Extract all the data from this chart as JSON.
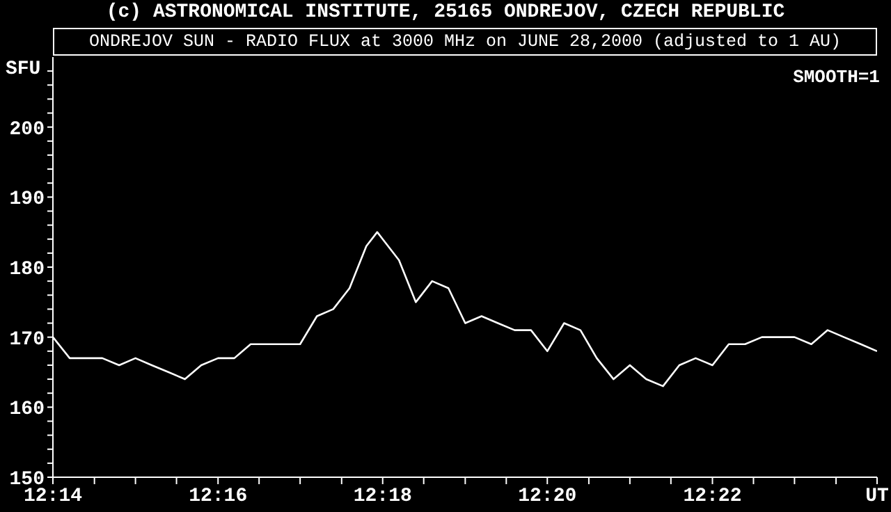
{
  "chart_data": {
    "type": "line",
    "title": "ONDREJOV SUN - RADIO FLUX at 3000 MHz on JUNE 28,2000 (adjusted to 1 AU)",
    "ylabel": "SFU",
    "annotations": [
      "(c) ASTRONOMICAL INSTITUTE, 25165 ONDREJOV, CZECH REPUBLIC",
      "SMOOTH=1"
    ],
    "x": [
      12.2333,
      12.2367,
      12.24,
      12.2433,
      12.2467,
      12.25,
      12.2533,
      12.2567,
      12.26,
      12.2633,
      12.2667,
      12.27,
      12.2733,
      12.2767,
      12.28,
      12.2833,
      12.2867,
      12.29,
      12.2933,
      12.2967,
      12.2989,
      12.3,
      12.3033,
      12.3067,
      12.31,
      12.3133,
      12.3167,
      12.32,
      12.3233,
      12.3267,
      12.33,
      12.3333,
      12.3367,
      12.34,
      12.3433,
      12.3467,
      12.35,
      12.3533,
      12.3567,
      12.36,
      12.3633,
      12.3667,
      12.37,
      12.3733,
      12.3767,
      12.38,
      12.3833,
      12.3867,
      12.39,
      12.3933,
      12.3967,
      12.4
    ],
    "values": [
      170,
      167,
      167,
      167,
      166,
      167,
      166,
      165,
      164,
      166,
      167,
      167,
      169,
      169,
      169,
      169,
      173,
      174,
      177,
      183,
      185,
      184,
      181,
      175,
      178,
      177,
      172,
      173,
      172,
      171,
      171,
      168,
      172,
      171,
      167,
      164,
      166,
      164,
      163,
      166,
      167,
      166,
      169,
      169,
      170,
      170,
      170,
      169,
      171,
      170,
      169,
      168
    ],
    "color": "#ffffff",
    "xlim": [
      12.2333,
      12.4
    ],
    "xticks": [
      {
        "value": 12.2333,
        "label": "12:14"
      },
      {
        "value": 12.2417,
        "label": null
      },
      {
        "value": 12.25,
        "label": null
      },
      {
        "value": 12.2583,
        "label": null
      },
      {
        "value": 12.2667,
        "label": "12:16"
      },
      {
        "value": 12.275,
        "label": null
      },
      {
        "value": 12.2833,
        "label": null
      },
      {
        "value": 12.2917,
        "label": null
      },
      {
        "value": 12.3,
        "label": "12:18"
      },
      {
        "value": 12.3083,
        "label": null
      },
      {
        "value": 12.3167,
        "label": null
      },
      {
        "value": 12.325,
        "label": null
      },
      {
        "value": 12.3333,
        "label": "12:20"
      },
      {
        "value": 12.3417,
        "label": null
      },
      {
        "value": 12.35,
        "label": null
      },
      {
        "value": 12.3583,
        "label": null
      },
      {
        "value": 12.3667,
        "label": "12:22"
      },
      {
        "value": 12.375,
        "label": null
      },
      {
        "value": 12.3833,
        "label": null
      },
      {
        "value": 12.3917,
        "label": null
      },
      {
        "value": 12.4,
        "label": "UT"
      }
    ],
    "ylim": [
      150,
      210
    ],
    "yticks": [
      150,
      {
        "value": 152,
        "label": null
      },
      {
        "value": 154,
        "label": null
      },
      {
        "value": 156,
        "label": null
      },
      {
        "value": 158,
        "label": null
      },
      160,
      {
        "value": 162,
        "label": null
      },
      {
        "value": 164,
        "label": null
      },
      {
        "value": 166,
        "label": null
      },
      {
        "value": 168,
        "label": null
      },
      170,
      {
        "value": 172,
        "label": null
      },
      {
        "value": 174,
        "label": null
      },
      {
        "value": 176,
        "label": null
      },
      {
        "value": 178,
        "label": null
      },
      180,
      {
        "value": 182,
        "label": null
      },
      {
        "value": 184,
        "label": null
      },
      {
        "value": 186,
        "label": null
      },
      {
        "value": 188,
        "label": null
      },
      190,
      {
        "value": 192,
        "label": null
      },
      {
        "value": 194,
        "label": null
      },
      {
        "value": 196,
        "label": null
      },
      {
        "value": 198,
        "label": null
      },
      200,
      {
        "value": 202,
        "label": null
      },
      {
        "value": 204,
        "label": null
      },
      {
        "value": 206,
        "label": null
      },
      {
        "value": 208,
        "label": null
      }
    ]
  }
}
